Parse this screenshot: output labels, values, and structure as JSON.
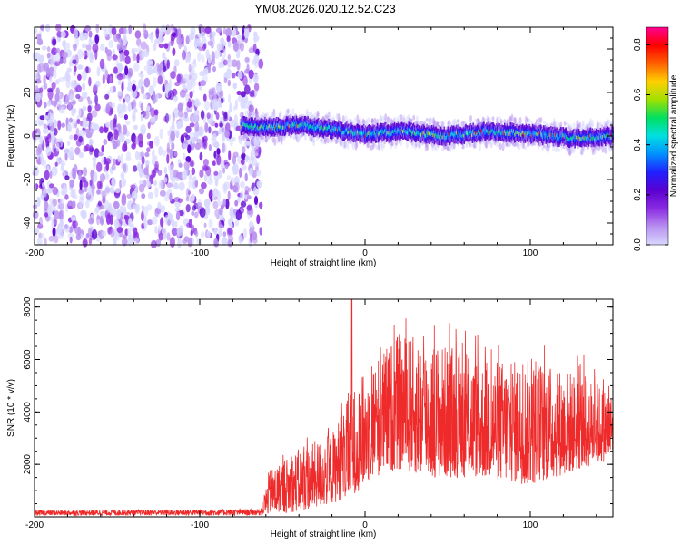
{
  "title": "YM08.2026.020.12.52.C23",
  "colors": {
    "snr_line": "#ee2a2a",
    "axis": "#000000",
    "colormap": [
      "#d8d8ff",
      "#b890f0",
      "#8a2be2",
      "#5a00d0",
      "#2020ff",
      "#0090ff",
      "#00e0e0",
      "#00e060",
      "#a0e000",
      "#ffd000",
      "#ff6000",
      "#ff0000",
      "#ff0090"
    ]
  },
  "chart_data": [
    {
      "type": "heatmap",
      "name": "spectrogram",
      "xlabel": "Height of straight line (km)",
      "ylabel": "Frequency (Hz)",
      "xlim": [
        -200,
        150
      ],
      "ylim": [
        -50,
        50
      ],
      "xticks": [
        "-200",
        "-100",
        "0",
        "100"
      ],
      "yticks": [
        "-40",
        "-20",
        "0",
        "20",
        "40"
      ],
      "noise_region_x": [
        -200,
        -63
      ],
      "signal_region_x": [
        -75,
        150
      ],
      "signal_center_hz": [
        {
          "x": -75,
          "y": 5
        },
        {
          "x": -60,
          "y": 4
        },
        {
          "x": -40,
          "y": 5
        },
        {
          "x": -20,
          "y": 3
        },
        {
          "x": 0,
          "y": 1
        },
        {
          "x": 25,
          "y": 2
        },
        {
          "x": 50,
          "y": 0
        },
        {
          "x": 75,
          "y": 2
        },
        {
          "x": 100,
          "y": 1
        },
        {
          "x": 125,
          "y": -1
        },
        {
          "x": 150,
          "y": 0
        }
      ],
      "colorbar": {
        "label": "Normalized spectral amplitude",
        "range": [
          0.0,
          0.87
        ],
        "ticks": [
          "0.0",
          "0.2",
          "0.4",
          "0.6",
          "0.8"
        ]
      }
    },
    {
      "type": "line",
      "name": "snr",
      "xlabel": "Height of straight line (km)",
      "ylabel": "SNR (10 * v/v)",
      "xlim": [
        -200,
        150
      ],
      "ylim": [
        0,
        8300
      ],
      "xticks": [
        "-200",
        "-100",
        "0",
        "100"
      ],
      "yticks": [
        "2000",
        "4000",
        "6000",
        "8000"
      ],
      "series_envelope": [
        {
          "x": -200,
          "low": 50,
          "high": 250
        },
        {
          "x": -63,
          "low": 50,
          "high": 300
        },
        {
          "x": -58,
          "low": 100,
          "high": 1800
        },
        {
          "x": -40,
          "low": 200,
          "high": 2600
        },
        {
          "x": -20,
          "low": 500,
          "high": 3200
        },
        {
          "x": -8,
          "low": 800,
          "high": 4800
        },
        {
          "x": 5,
          "low": 1500,
          "high": 6000
        },
        {
          "x": 20,
          "low": 1800,
          "high": 7000
        },
        {
          "x": 40,
          "low": 1500,
          "high": 6800
        },
        {
          "x": 70,
          "low": 1500,
          "high": 6000
        },
        {
          "x": 100,
          "low": 1200,
          "high": 6000
        },
        {
          "x": 130,
          "low": 1800,
          "high": 5500
        },
        {
          "x": 150,
          "low": 2200,
          "high": 4800
        }
      ],
      "peak": {
        "x": -8,
        "y": 8300
      }
    }
  ]
}
